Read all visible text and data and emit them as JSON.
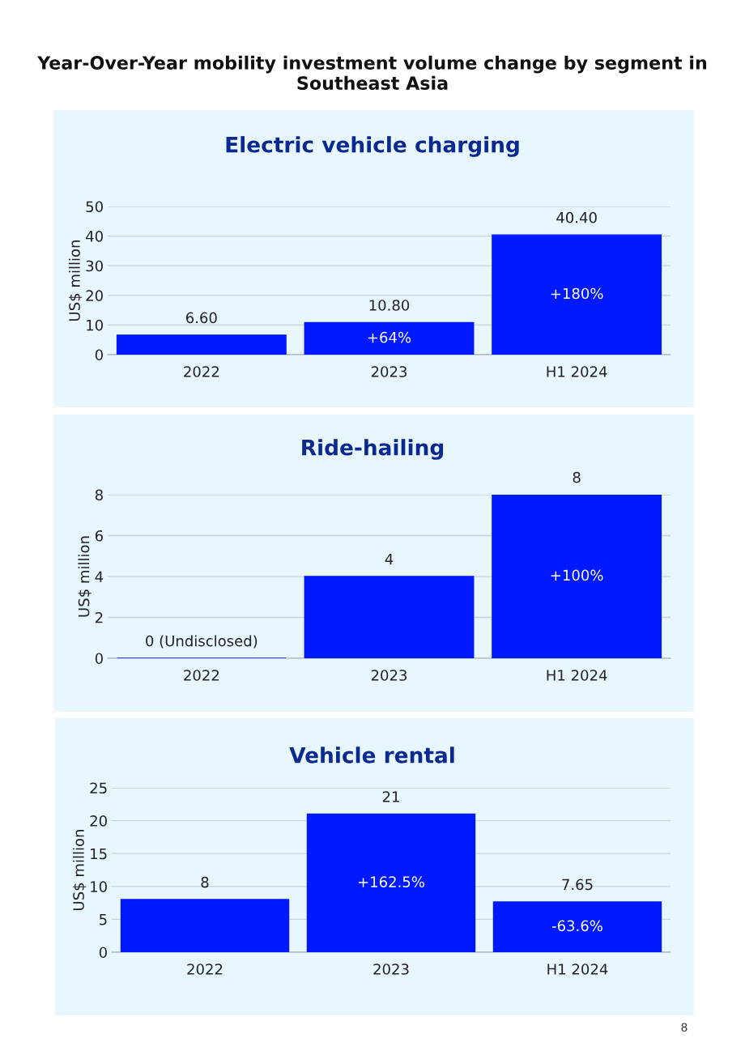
{
  "chart_data": [
    {
      "type": "bar",
      "title": "Electric vehicle charging",
      "ylabel": "US$ million",
      "categories": [
        "2022",
        "2023",
        "H1 2024"
      ],
      "series": [
        {
          "color": "#0019ff",
          "values": [
            6.6,
            10.8,
            40.4
          ]
        }
      ],
      "value_labels": [
        "6.60",
        "10.80",
        "40.40"
      ],
      "ylim": [
        0,
        50
      ],
      "yticks": [
        0,
        10,
        20,
        30,
        40,
        50
      ],
      "grid": "y",
      "annotations": [
        "Year-Over-Year mobility investment volume change by segment in Southeast Asia",
        "+64%",
        "+180%"
      ]
    },
    {
      "type": "bar",
      "title": "Ride-hailing",
      "ylabel": "US$ million",
      "categories": [
        "2022",
        "2023",
        "H1 2024"
      ],
      "series": [
        {
          "color": "#0019ff",
          "values": [
            0,
            4,
            8
          ]
        }
      ],
      "value_labels": [
        "0 (Undisclosed)",
        "4",
        "8"
      ],
      "ylim": [
        0,
        8
      ],
      "yticks": [
        0,
        2,
        4,
        6,
        8
      ],
      "grid": "y",
      "annotations": [
        "+100%"
      ]
    },
    {
      "type": "bar",
      "title": "Vehicle rental",
      "ylabel": "US$ million",
      "categories": [
        "2022",
        "2023",
        "H1 2024"
      ],
      "series": [
        {
          "color": "#0019ff",
          "values": [
            8,
            21,
            7.65
          ]
        }
      ],
      "value_labels": [
        "8",
        "21",
        "7.65"
      ],
      "ylim": [
        0,
        25
      ],
      "yticks": [
        0,
        5,
        10,
        15,
        20,
        25
      ],
      "grid": "y",
      "annotations": [
        "+162.5%",
        "-63.6%",
        "8"
      ]
    }
  ]
}
